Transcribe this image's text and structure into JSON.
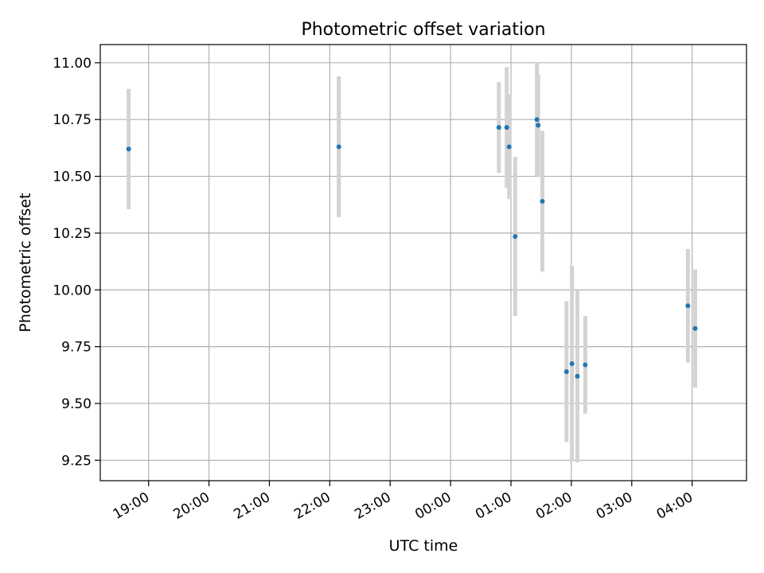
{
  "chart_data": {
    "type": "scatter",
    "title": "Photometric offset variation",
    "xlabel": "UTC time",
    "ylabel": "Photometric offset",
    "x_unit": "hours since 00:00 UTC (negative = previous evening)",
    "xlim": [
      -5.8,
      4.9
    ],
    "ylim": [
      9.16,
      11.08
    ],
    "x_ticks": [
      {
        "value": -5,
        "label": "19:00"
      },
      {
        "value": -4,
        "label": "20:00"
      },
      {
        "value": -3,
        "label": "21:00"
      },
      {
        "value": -2,
        "label": "22:00"
      },
      {
        "value": -1,
        "label": "23:00"
      },
      {
        "value": 0,
        "label": "00:00"
      },
      {
        "value": 1,
        "label": "01:00"
      },
      {
        "value": 2,
        "label": "02:00"
      },
      {
        "value": 3,
        "label": "03:00"
      },
      {
        "value": 4,
        "label": "04:00"
      }
    ],
    "y_ticks": [
      {
        "value": 9.25,
        "label": "9.25"
      },
      {
        "value": 9.5,
        "label": "9.50"
      },
      {
        "value": 9.75,
        "label": "9.75"
      },
      {
        "value": 10.0,
        "label": "10.00"
      },
      {
        "value": 10.25,
        "label": "10.25"
      },
      {
        "value": 10.5,
        "label": "10.50"
      },
      {
        "value": 10.75,
        "label": "10.75"
      },
      {
        "value": 11.0,
        "label": "11.00"
      }
    ],
    "grid": true,
    "legend": "none",
    "colors": {
      "marker": "#1f77b4",
      "errorbar": "#d3d3d3",
      "grid": "#b0b0b0"
    },
    "points": [
      {
        "x": -5.33,
        "y": 10.62,
        "err": 0.265
      },
      {
        "x": -1.85,
        "y": 10.63,
        "err": 0.31
      },
      {
        "x": 0.8,
        "y": 10.715,
        "err": 0.2
      },
      {
        "x": 0.93,
        "y": 10.715,
        "err": 0.265
      },
      {
        "x": 0.97,
        "y": 10.63,
        "err": 0.23
      },
      {
        "x": 1.07,
        "y": 10.235,
        "err": 0.35
      },
      {
        "x": 1.43,
        "y": 10.75,
        "err": 0.25
      },
      {
        "x": 1.45,
        "y": 10.725,
        "err": 0.225
      },
      {
        "x": 1.52,
        "y": 10.39,
        "err": 0.31
      },
      {
        "x": 1.92,
        "y": 9.64,
        "err": 0.31
      },
      {
        "x": 2.01,
        "y": 9.675,
        "err": 0.43
      },
      {
        "x": 2.1,
        "y": 9.62,
        "err": 0.38
      },
      {
        "x": 2.23,
        "y": 9.67,
        "err": 0.215
      },
      {
        "x": 3.93,
        "y": 9.93,
        "err": 0.25
      },
      {
        "x": 4.05,
        "y": 9.83,
        "err": 0.26
      }
    ]
  }
}
